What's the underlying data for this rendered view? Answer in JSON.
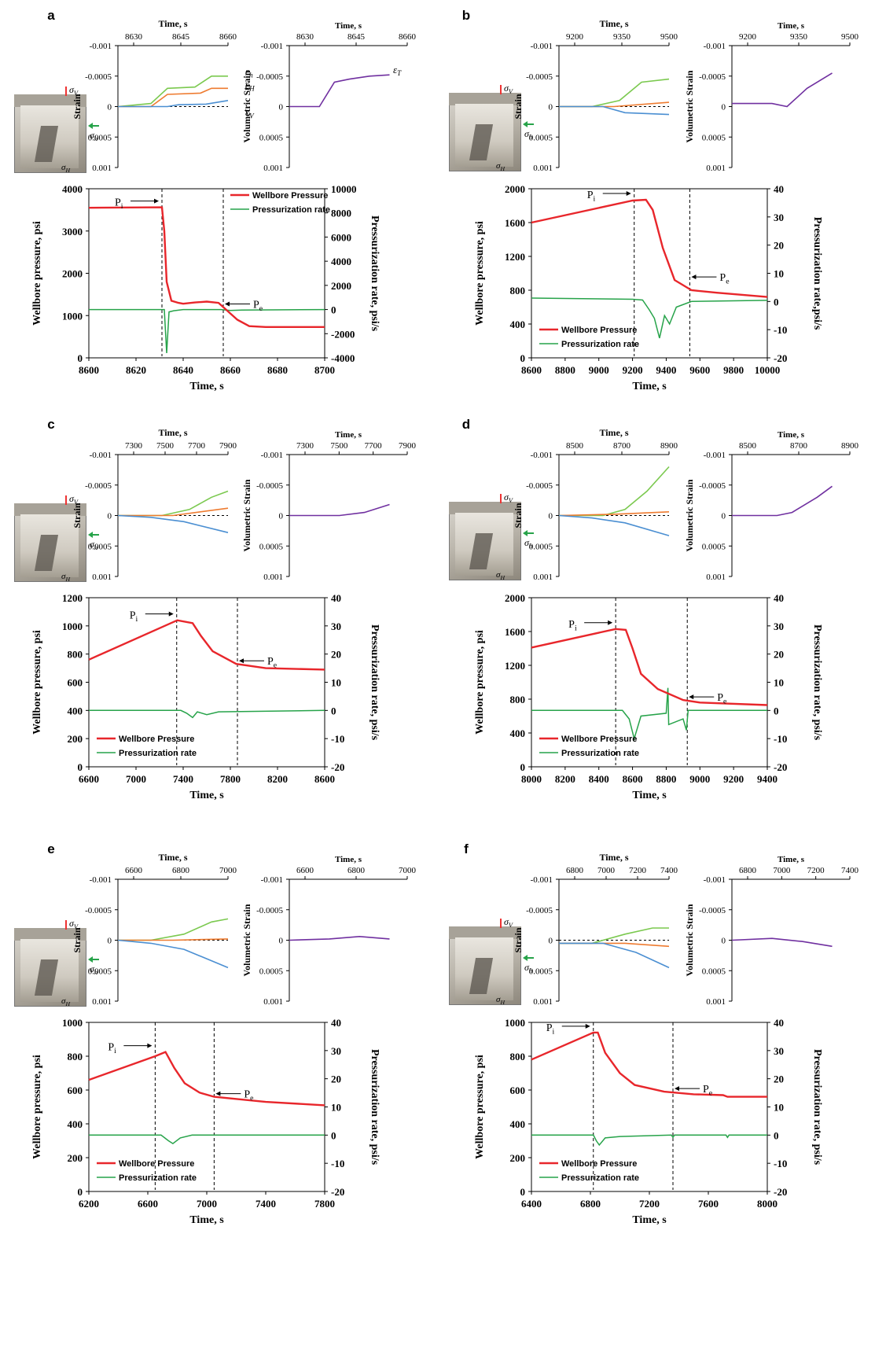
{
  "colors": {
    "wellbore": "#e8262b",
    "rate": "#27a34a",
    "eps_h": "#7bc94f",
    "eps_H": "#ee7b30",
    "eps_V": "#4b8fd2",
    "volumetric": "#7030a0",
    "dashed": "#000000"
  },
  "common": {
    "time_label": "Time, s",
    "strain_label": "Strain",
    "vol_label": "Volumetric Strain",
    "wb_label": "Wellbore pressure, psi",
    "pr_label": "Pressurization rate, psi/s",
    "pr_label_b": "Pressurization rate,psi/s",
    "legend_wb": "Wellbore Pressure",
    "legend_pr": "Pressurization rate",
    "pi": "P",
    "pi_sub": "i",
    "pe": "P",
    "pe_sub": "e",
    "eps_h": "ε",
    "eps_h_sub": "h",
    "eps_H_sub": "H",
    "eps_V_sub": "V",
    "eps_T_sub": "T",
    "sigma": "σ",
    "sigma_h_sub": "h",
    "sigma_H_sub": "H",
    "sigma_V_sub": "V"
  },
  "chart_data": [
    {
      "panel": "a",
      "type": "line",
      "strain_xticks": [
        "8630",
        "8645",
        "8660"
      ],
      "strain_yticks": [
        "-0.001",
        "-0.0005",
        "0",
        "0.0005",
        "0.001"
      ],
      "vol_xticks": [
        "8630",
        "8645",
        "8660"
      ],
      "vol_yticks": [
        "-0.001",
        "-0.0005",
        "0",
        "0.0005",
        "0.001"
      ],
      "xlim": [
        8600,
        8700
      ],
      "xticks": [
        "8600",
        "8620",
        "8640",
        "8660",
        "8680",
        "8700"
      ],
      "ylim": [
        0,
        4000
      ],
      "yticks": [
        "0",
        "1000",
        "2000",
        "3000",
        "4000"
      ],
      "y2lim": [
        -4000,
        10000
      ],
      "y2ticks": [
        "-4000",
        "-2000",
        "0",
        "2000",
        "4000",
        "6000",
        "8000",
        "10000"
      ],
      "wellbore": [
        [
          8600,
          3550
        ],
        [
          8631,
          3560
        ],
        [
          8632,
          3000
        ],
        [
          8633,
          1800
        ],
        [
          8635,
          1350
        ],
        [
          8638,
          1300
        ],
        [
          8640,
          1280
        ],
        [
          8645,
          1310
        ],
        [
          8650,
          1330
        ],
        [
          8655,
          1300
        ],
        [
          8657,
          1200
        ],
        [
          8660,
          1050
        ],
        [
          8663,
          900
        ],
        [
          8668,
          750
        ],
        [
          8675,
          730
        ],
        [
          8700,
          730
        ]
      ],
      "rate": [
        [
          8600,
          0
        ],
        [
          8632,
          0
        ],
        [
          8633,
          -3600
        ],
        [
          8634,
          -200
        ],
        [
          8636,
          -100
        ],
        [
          8640,
          0
        ],
        [
          8656,
          0
        ],
        [
          8660,
          -80
        ],
        [
          8665,
          -40
        ],
        [
          8700,
          0
        ]
      ],
      "pi_x": 8631,
      "pe_x": 8657
    },
    {
      "panel": "b",
      "type": "line",
      "strain_xticks": [
        "9200",
        "9350",
        "9500"
      ],
      "strain_yticks": [
        "-0.001",
        "-0.0005",
        "0",
        "0.0005",
        "0.001"
      ],
      "vol_xticks": [
        "9200",
        "9350",
        "9500"
      ],
      "vol_yticks": [
        "-0.001",
        "-0.0005",
        "0",
        "0.0005",
        "0.001"
      ],
      "xlim": [
        8600,
        10000
      ],
      "xticks": [
        "8600",
        "8800",
        "9000",
        "9200",
        "9400",
        "9600",
        "9800",
        "10000"
      ],
      "ylim": [
        0,
        2000
      ],
      "yticks": [
        "0",
        "400",
        "800",
        "1200",
        "1600",
        "2000"
      ],
      "y2lim": [
        -20,
        40
      ],
      "y2ticks": [
        "-20",
        "-10",
        "0",
        "10",
        "20",
        "30",
        "40"
      ],
      "wellbore": [
        [
          8600,
          1600
        ],
        [
          9200,
          1860
        ],
        [
          9280,
          1870
        ],
        [
          9320,
          1750
        ],
        [
          9380,
          1300
        ],
        [
          9450,
          920
        ],
        [
          9550,
          800
        ],
        [
          9700,
          770
        ],
        [
          10000,
          720
        ]
      ],
      "rate": [
        [
          8600,
          1.2
        ],
        [
          9200,
          0.8
        ],
        [
          9260,
          0.5
        ],
        [
          9300,
          -3
        ],
        [
          9330,
          -6
        ],
        [
          9360,
          -13
        ],
        [
          9390,
          -5
        ],
        [
          9420,
          -8
        ],
        [
          9460,
          -2
        ],
        [
          9550,
          0
        ],
        [
          10000,
          0.4
        ]
      ],
      "pi_x": 9210,
      "pe_x": 9540
    },
    {
      "panel": "c",
      "type": "line",
      "strain_xticks": [
        "7300",
        "7500",
        "7700",
        "7900"
      ],
      "strain_yticks": [
        "-0.001",
        "-0.0005",
        "0",
        "0.0005",
        "0.001"
      ],
      "vol_xticks": [
        "7300",
        "7500",
        "7700",
        "7900"
      ],
      "vol_yticks": [
        "-0.001",
        "-0.0005",
        "0",
        "0.0005",
        "0.001"
      ],
      "xlim": [
        6600,
        8600
      ],
      "xticks": [
        "6600",
        "7000",
        "7400",
        "7800",
        "8200",
        "8600"
      ],
      "ylim": [
        0,
        1200
      ],
      "yticks": [
        "0",
        "200",
        "400",
        "600",
        "800",
        "1000",
        "1200"
      ],
      "y2lim": [
        -20,
        40
      ],
      "y2ticks": [
        "-20",
        "-10",
        "0",
        "10",
        "20",
        "30",
        "40"
      ],
      "wellbore": [
        [
          6600,
          760
        ],
        [
          7350,
          1040
        ],
        [
          7480,
          1020
        ],
        [
          7550,
          930
        ],
        [
          7650,
          820
        ],
        [
          7850,
          730
        ],
        [
          8100,
          700
        ],
        [
          8600,
          690
        ]
      ],
      "rate": [
        [
          6600,
          0
        ],
        [
          7380,
          0
        ],
        [
          7430,
          -1
        ],
        [
          7480,
          -2.5
        ],
        [
          7520,
          -0.5
        ],
        [
          7600,
          -1.5
        ],
        [
          7700,
          -0.5
        ],
        [
          8600,
          0
        ]
      ],
      "pi_x": 7345,
      "pe_x": 7860
    },
    {
      "panel": "d",
      "type": "line",
      "strain_xticks": [
        "8500",
        "8700",
        "8900"
      ],
      "strain_yticks": [
        "-0.001",
        "-0.0005",
        "0",
        "0.0005",
        "0.001"
      ],
      "vol_xticks": [
        "8500",
        "8700",
        "8900"
      ],
      "vol_yticks": [
        "-0.001",
        "-0.0005",
        "0",
        "0.0005",
        "0.001"
      ],
      "xlim": [
        8000,
        9400
      ],
      "xticks": [
        "8000",
        "8200",
        "8400",
        "8600",
        "8800",
        "9000",
        "9200",
        "9400"
      ],
      "ylim": [
        0,
        2000
      ],
      "yticks": [
        "0",
        "400",
        "800",
        "1200",
        "1600",
        "2000"
      ],
      "y2lim": [
        -20,
        40
      ],
      "y2ticks": [
        "-20",
        "-10",
        "0",
        "10",
        "20",
        "30",
        "40"
      ],
      "wellbore": [
        [
          8000,
          1410
        ],
        [
          8500,
          1630
        ],
        [
          8560,
          1620
        ],
        [
          8600,
          1400
        ],
        [
          8650,
          1100
        ],
        [
          8750,
          920
        ],
        [
          8900,
          790
        ],
        [
          9000,
          760
        ],
        [
          9400,
          730
        ]
      ],
      "rate": [
        [
          8000,
          0
        ],
        [
          8540,
          0
        ],
        [
          8580,
          -3
        ],
        [
          8610,
          -10
        ],
        [
          8650,
          -2
        ],
        [
          8800,
          -1
        ],
        [
          8810,
          8
        ],
        [
          8815,
          -5
        ],
        [
          8900,
          -3
        ],
        [
          8920,
          -7
        ],
        [
          8930,
          0
        ],
        [
          9400,
          0
        ]
      ],
      "pi_x": 8500,
      "pe_x": 8925
    },
    {
      "panel": "e",
      "type": "line",
      "strain_xticks": [
        "6600",
        "6800",
        "7000"
      ],
      "strain_yticks": [
        "-0.001",
        "-0.0005",
        "0",
        "0.0005",
        "0.001"
      ],
      "vol_xticks": [
        "6600",
        "6800",
        "7000"
      ],
      "vol_yticks": [
        "-0.001",
        "-0.0005",
        "0",
        "0.0005",
        "0.001"
      ],
      "xlim": [
        6200,
        7800
      ],
      "xticks": [
        "6200",
        "6600",
        "7000",
        "7400",
        "7800"
      ],
      "ylim": [
        0,
        1000
      ],
      "yticks": [
        "0",
        "200",
        "400",
        "600",
        "800",
        "1000"
      ],
      "y2lim": [
        -20,
        40
      ],
      "y2ticks": [
        "-20",
        "-10",
        "0",
        "10",
        "20",
        "30",
        "40"
      ],
      "wellbore": [
        [
          6200,
          660
        ],
        [
          6650,
          800
        ],
        [
          6720,
          825
        ],
        [
          6780,
          730
        ],
        [
          6850,
          640
        ],
        [
          6950,
          585
        ],
        [
          7050,
          560
        ],
        [
          7400,
          530
        ],
        [
          7800,
          510
        ]
      ],
      "rate": [
        [
          6200,
          0
        ],
        [
          6690,
          0
        ],
        [
          6740,
          -2
        ],
        [
          6770,
          -3
        ],
        [
          6820,
          -1
        ],
        [
          6900,
          0
        ],
        [
          7800,
          0
        ]
      ],
      "pi_x": 6650,
      "pe_x": 7050
    },
    {
      "panel": "f",
      "type": "line",
      "strain_xticks": [
        "6800",
        "7000",
        "7200",
        "7400"
      ],
      "strain_yticks": [
        "-0.001",
        "-0.0005",
        "0",
        "0.0005",
        "0.001"
      ],
      "vol_xticks": [
        "6800",
        "7000",
        "7200",
        "7400"
      ],
      "vol_yticks": [
        "-0.001",
        "-0.0005",
        "0",
        "0.0005",
        "0.001"
      ],
      "xlim": [
        6400,
        8000
      ],
      "xticks": [
        "6400",
        "6800",
        "7200",
        "7600",
        "8000"
      ],
      "ylim": [
        0,
        1000
      ],
      "yticks": [
        "0",
        "200",
        "400",
        "600",
        "800",
        "1000"
      ],
      "y2lim": [
        -20,
        40
      ],
      "y2ticks": [
        "-20",
        "-10",
        "0",
        "10",
        "20",
        "30",
        "40"
      ],
      "wellbore": [
        [
          6400,
          780
        ],
        [
          6820,
          940
        ],
        [
          6850,
          940
        ],
        [
          6900,
          820
        ],
        [
          7000,
          700
        ],
        [
          7100,
          630
        ],
        [
          7300,
          590
        ],
        [
          7500,
          575
        ],
        [
          7700,
          570
        ],
        [
          7730,
          560
        ],
        [
          8000,
          560
        ]
      ],
      "rate": [
        [
          6400,
          0
        ],
        [
          6820,
          0
        ],
        [
          6840,
          -2
        ],
        [
          6860,
          -3.5
        ],
        [
          6900,
          -1
        ],
        [
          7000,
          -0.5
        ],
        [
          7350,
          0
        ],
        [
          7360,
          -0.8
        ],
        [
          7370,
          0
        ],
        [
          7720,
          0
        ],
        [
          7730,
          -0.8
        ],
        [
          7740,
          0
        ],
        [
          8000,
          0
        ]
      ],
      "pi_x": 6820,
      "pe_x": 7360
    }
  ],
  "strain_series": [
    {
      "h": [
        [
          0,
          0
        ],
        [
          0.3,
          -5e-05
        ],
        [
          0.45,
          -0.0003
        ],
        [
          0.7,
          -0.00032
        ],
        [
          0.85,
          -0.0005
        ],
        [
          1,
          -0.0005
        ]
      ],
      "H": [
        [
          0,
          0
        ],
        [
          0.3,
          0
        ],
        [
          0.45,
          -0.0002
        ],
        [
          0.75,
          -0.00022
        ],
        [
          0.85,
          -0.0003
        ],
        [
          1,
          -0.0003
        ]
      ],
      "V": [
        [
          0,
          0
        ],
        [
          0.45,
          0
        ],
        [
          0.55,
          -3e-05
        ],
        [
          0.8,
          -4e-05
        ],
        [
          1,
          -0.0001
        ]
      ],
      "T": [
        [
          0,
          0
        ],
        [
          0.3,
          0
        ],
        [
          0.45,
          -0.0004
        ],
        [
          0.6,
          -0.00045
        ],
        [
          0.8,
          -0.0005
        ],
        [
          1,
          -0.00052
        ]
      ]
    },
    {
      "h": [
        [
          0,
          0
        ],
        [
          0.3,
          0
        ],
        [
          0.55,
          -0.0001
        ],
        [
          0.75,
          -0.0004
        ],
        [
          1,
          -0.00045
        ]
      ],
      "H": [
        [
          0,
          0
        ],
        [
          0.5,
          0
        ],
        [
          1,
          -7e-05
        ]
      ],
      "V": [
        [
          0,
          0
        ],
        [
          0.4,
          0
        ],
        [
          0.6,
          0.0001
        ],
        [
          1,
          0.00013
        ]
      ],
      "T": [
        [
          0,
          -5e-05
        ],
        [
          0.4,
          -5e-05
        ],
        [
          0.55,
          0
        ],
        [
          0.75,
          -0.0003
        ],
        [
          1,
          -0.00055
        ]
      ]
    },
    {
      "h": [
        [
          0,
          0
        ],
        [
          0.4,
          0
        ],
        [
          0.65,
          -0.0001
        ],
        [
          0.85,
          -0.0003
        ],
        [
          1,
          -0.0004
        ]
      ],
      "H": [
        [
          0,
          0
        ],
        [
          0.5,
          0
        ],
        [
          1,
          -0.00012
        ]
      ],
      "V": [
        [
          0,
          0
        ],
        [
          0.3,
          3e-05
        ],
        [
          0.6,
          0.0001
        ],
        [
          1,
          0.00028
        ]
      ],
      "T": [
        [
          0,
          0
        ],
        [
          0.5,
          0
        ],
        [
          0.75,
          -5e-05
        ],
        [
          1,
          -0.00018
        ]
      ]
    },
    {
      "h": [
        [
          0,
          0
        ],
        [
          0.4,
          0
        ],
        [
          0.6,
          -0.0001
        ],
        [
          0.8,
          -0.0004
        ],
        [
          1,
          -0.0008
        ]
      ],
      "H": [
        [
          0,
          0
        ],
        [
          0.5,
          -2e-05
        ],
        [
          1,
          -6e-05
        ]
      ],
      "V": [
        [
          0,
          0
        ],
        [
          0.3,
          4e-05
        ],
        [
          0.6,
          0.00012
        ],
        [
          1,
          0.00033
        ]
      ],
      "T": [
        [
          0,
          0
        ],
        [
          0.45,
          0
        ],
        [
          0.6,
          -5e-05
        ],
        [
          0.85,
          -0.0003
        ],
        [
          1,
          -0.00048
        ]
      ]
    },
    {
      "h": [
        [
          0,
          0
        ],
        [
          0.3,
          0
        ],
        [
          0.6,
          -0.0001
        ],
        [
          0.85,
          -0.0003
        ],
        [
          1,
          -0.00035
        ]
      ],
      "H": [
        [
          0,
          0
        ],
        [
          0.5,
          0
        ],
        [
          1,
          -2e-05
        ]
      ],
      "V": [
        [
          0,
          0
        ],
        [
          0.3,
          5e-05
        ],
        [
          0.6,
          0.00015
        ],
        [
          1,
          0.00045
        ]
      ],
      "T": [
        [
          0,
          0
        ],
        [
          0.4,
          -2e-05
        ],
        [
          0.7,
          -6e-05
        ],
        [
          1,
          -2e-05
        ]
      ]
    },
    {
      "h": [
        [
          0,
          5e-05
        ],
        [
          0.3,
          5e-05
        ],
        [
          0.6,
          -0.0001
        ],
        [
          0.85,
          -0.0002
        ],
        [
          1,
          -0.0002
        ]
      ],
      "H": [
        [
          0,
          5e-05
        ],
        [
          0.6,
          5e-05
        ],
        [
          1,
          0.0001
        ]
      ],
      "V": [
        [
          0,
          5e-05
        ],
        [
          0.4,
          5e-05
        ],
        [
          0.7,
          0.0002
        ],
        [
          1,
          0.00045
        ]
      ],
      "T": [
        [
          0,
          0
        ],
        [
          0.4,
          -3e-05
        ],
        [
          0.7,
          2e-05
        ],
        [
          1,
          0.0001
        ]
      ]
    }
  ]
}
